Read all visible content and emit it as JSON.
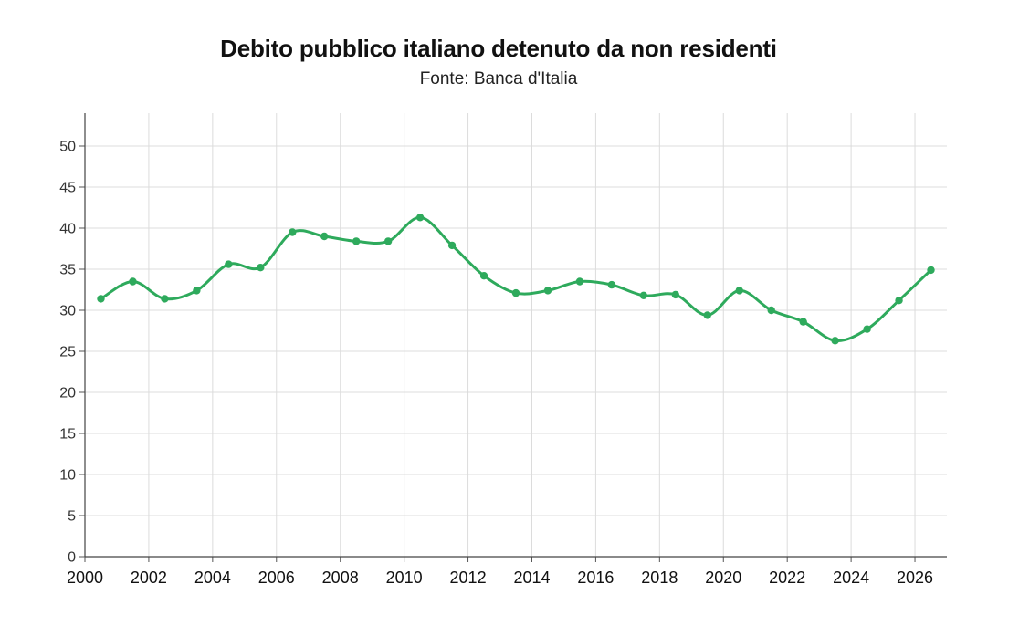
{
  "chart_data": {
    "type": "line",
    "title": "Debito pubblico italiano detenuto da non residenti",
    "subtitle": "Fonte: Banca d'Italia",
    "xlabel": "",
    "ylabel": "",
    "xlim": [
      2000,
      2027
    ],
    "ylim": [
      0,
      54
    ],
    "x_ticks": [
      2000,
      2002,
      2004,
      2006,
      2008,
      2010,
      2012,
      2014,
      2016,
      2018,
      2020,
      2022,
      2024,
      2026
    ],
    "y_ticks": [
      0,
      5,
      10,
      15,
      20,
      25,
      30,
      35,
      40,
      45,
      50
    ],
    "grid": true,
    "legend": "none",
    "color": "#2eaa5c",
    "x": [
      2000.5,
      2001.5,
      2002.5,
      2003.5,
      2004.5,
      2005.5,
      2006.5,
      2007.5,
      2008.5,
      2009.5,
      2010.5,
      2011.5,
      2012.5,
      2013.5,
      2014.5,
      2015.5,
      2016.5,
      2017.5,
      2018.5,
      2019.5,
      2020.5,
      2021.5,
      2022.5,
      2023.5,
      2024.5,
      2025.5,
      2026.5
    ],
    "y": [
      31.4,
      33.5,
      31.4,
      32.4,
      35.6,
      35.2,
      39.5,
      39.0,
      38.4,
      38.4,
      41.3,
      37.9,
      34.2,
      32.1,
      32.4,
      33.5,
      33.1,
      31.8,
      31.9,
      29.4,
      32.4,
      30.0,
      28.6,
      26.3,
      27.7,
      31.2,
      34.9
    ]
  }
}
